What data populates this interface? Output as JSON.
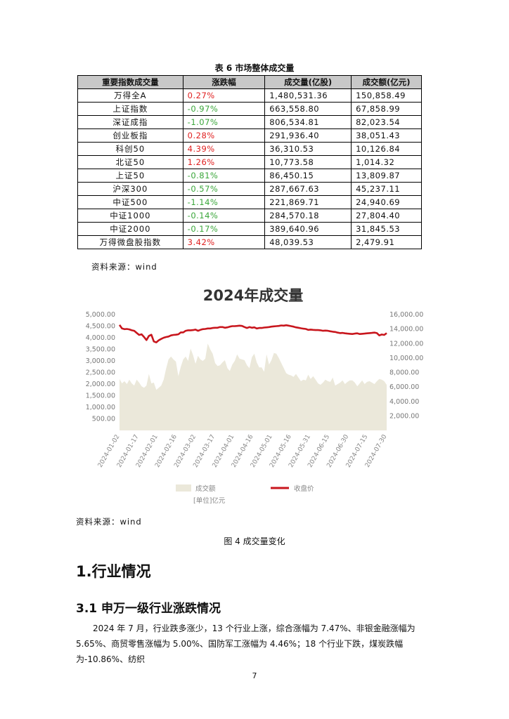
{
  "table": {
    "caption": "表 6  市场整体成交量",
    "headers": [
      "重要指数成交量",
      "涨跌幅",
      "成交量(亿股)",
      "成交额(亿元)"
    ],
    "rows": [
      {
        "name": "万得全A",
        "change": "0.27%",
        "volume": "1,480,531.36",
        "amount": "150,858.49",
        "dir": "up"
      },
      {
        "name": "上证指数",
        "change": "-0.97%",
        "volume": "663,558.80",
        "amount": "67,858.99",
        "dir": "down"
      },
      {
        "name": "深证成指",
        "change": "-1.07%",
        "volume": "806,534.81",
        "amount": "82,023.54",
        "dir": "down"
      },
      {
        "name": "创业板指",
        "change": "0.28%",
        "volume": "291,936.40",
        "amount": "38,051.43",
        "dir": "up"
      },
      {
        "name": "科创50",
        "change": "4.39%",
        "volume": "36,310.53",
        "amount": "10,126.84",
        "dir": "up"
      },
      {
        "name": "北证50",
        "change": "1.26%",
        "volume": "10,773.58",
        "amount": "1,014.32",
        "dir": "up"
      },
      {
        "name": "上证50",
        "change": "-0.81%",
        "volume": "86,450.15",
        "amount": "13,809.87",
        "dir": "down"
      },
      {
        "name": "沪深300",
        "change": "-0.57%",
        "volume": "287,667.63",
        "amount": "45,237.11",
        "dir": "down"
      },
      {
        "name": "中证500",
        "change": "-1.14%",
        "volume": "221,869.71",
        "amount": "24,940.69",
        "dir": "down"
      },
      {
        "name": "中证1000",
        "change": "-0.14%",
        "volume": "284,570.18",
        "amount": "27,804.40",
        "dir": "down"
      },
      {
        "name": "中证2000",
        "change": "-0.17%",
        "volume": "389,640.96",
        "amount": "31,845.53",
        "dir": "down"
      },
      {
        "name": "万得微盘股指数",
        "change": "3.42%",
        "volume": "48,039.53",
        "amount": "2,479.91",
        "dir": "up"
      }
    ],
    "source": "资料来源：wind"
  },
  "chart_source": "资料来源：wind",
  "figure_caption": "图 4  成交量变化",
  "section_heading": "1.行业情况",
  "subsection_heading": "3.1 申万一级行业涨跌情况",
  "paragraph": "2024 年 7 月，行业跌多涨少，13 个行业上涨，综合涨幅为 7.47%、非银金融涨幅为 5.65%、商贸零售涨幅为 5.00%、国防军工涨幅为 4.46%；18 个行业下跌，煤炭跌幅为-10.86%、纺织",
  "page_number": "7",
  "colors": {
    "up": "#e02020",
    "down": "#3aa63a",
    "area": "#ebe8da",
    "line": "#c8161d",
    "header_bg": "#c8c8c8"
  },
  "chart_data": {
    "type": "area",
    "title": "2024年成交量",
    "x_tick_labels": [
      "2024-01-02",
      "2024-01-17",
      "2024-02-01",
      "2024-02-16",
      "2024-03-02",
      "2024-03-17",
      "2024-04-01",
      "2024-04-16",
      "2024-05-01",
      "2024-05-16",
      "2024-05-31",
      "2024-06-15",
      "2024-06-30",
      "2024-07-15",
      "2024-07-30"
    ],
    "y_left_ticks": [
      "500.00",
      "1,000.00",
      "1,500.00",
      "2,000.00",
      "2,500.00",
      "3,000.00",
      "3,500.00",
      "4,000.00",
      "4,500.00",
      "5,000.00"
    ],
    "y_right_ticks": [
      "2,000.00",
      "4,000.00",
      "6,000.00",
      "8,000.00",
      "10,000.00",
      "12,000.00",
      "14,000.00",
      "16,000.00"
    ],
    "ylim_left": [
      0,
      5000
    ],
    "ylim_right": [
      0,
      16000
    ],
    "unit_label": "[单位]亿元",
    "series": [
      {
        "name": "成交额",
        "axis": "right",
        "kind": "area",
        "values": [
          7100,
          6500,
          6800,
          6400,
          7000,
          6500,
          6200,
          7000,
          6600,
          6100,
          5900,
          6200,
          7800,
          6500,
          6600,
          5600,
          5900,
          6200,
          7000,
          8500,
          9800,
          10200,
          9800,
          9500,
          7500,
          8800,
          9800,
          10200,
          9600,
          11300,
          10400,
          9200,
          10300,
          9800,
          9600,
          9900,
          12000,
          11200,
          10600,
          9300,
          8900,
          9000,
          9400,
          9700,
          8600,
          8200,
          9100,
          9600,
          10500,
          9900,
          9800,
          9700,
          9000,
          8600,
          10100,
          10600,
          9400,
          8700,
          8700,
          8100,
          10500,
          9100,
          9700,
          10700,
          10600,
          10000,
          9300,
          8600,
          7900,
          7700,
          7600,
          7400,
          7800,
          7300,
          6800,
          7000,
          6900,
          7700,
          7100,
          7500,
          7000,
          6500,
          6300,
          6600,
          7000,
          6800,
          6700,
          7300,
          6200,
          6400,
          6600,
          6900,
          6400,
          6700,
          6900,
          6900,
          6600,
          6100,
          6500,
          6900,
          6400,
          6700,
          6800,
          6600,
          6400,
          6800,
          7100,
          7000,
          6800,
          6300
        ]
      },
      {
        "name": "收盘价",
        "axis": "left",
        "kind": "line",
        "values": [
          4550,
          4400,
          4370,
          4380,
          4360,
          4320,
          4300,
          4210,
          4120,
          4150,
          4030,
          3900,
          4080,
          4130,
          3840,
          3800,
          3890,
          3950,
          4000,
          4030,
          4050,
          4100,
          4120,
          4130,
          4150,
          4230,
          4230,
          4300,
          4320,
          4320,
          4330,
          4350,
          4300,
          4340,
          4370,
          4380,
          4400,
          4400,
          4420,
          4430,
          4430,
          4460,
          4460,
          4430,
          4450,
          4480,
          4500,
          4500,
          4510,
          4520,
          4510,
          4460,
          4420,
          4460,
          4430,
          4450,
          4400,
          4420,
          4420,
          4440,
          4450,
          4460,
          4480,
          4490,
          4500,
          4510,
          4530,
          4520,
          4540,
          4520,
          4500,
          4480,
          4450,
          4430,
          4410,
          4390,
          4380,
          4340,
          4350,
          4340,
          4330,
          4330,
          4320,
          4300,
          4310,
          4300,
          4280,
          4260,
          4250,
          4220,
          4200,
          4210,
          4190,
          4180,
          4170,
          4160,
          4180,
          4190,
          4160,
          4170,
          4180,
          4190,
          4200,
          4210,
          4220,
          4200,
          4100,
          4140,
          4120,
          4200
        ]
      }
    ]
  }
}
